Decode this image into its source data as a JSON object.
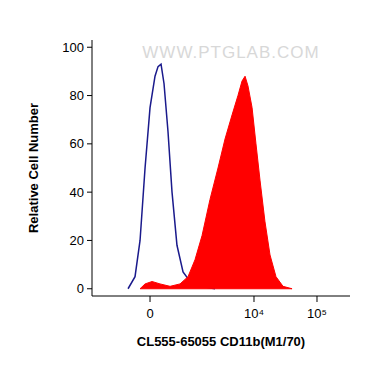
{
  "chart_data": {
    "type": "area",
    "x_label": "CL555-65055 CD11b(M1/70)",
    "y_label": "Relative Cell Number",
    "annotation": "WWW.PTGLAB.COM",
    "log": "x",
    "xlim": [
      -1840,
      334000
    ],
    "xticks": [
      0,
      {
        "value": 10000,
        "label": "10⁴"
      },
      {
        "value": 100000,
        "label": "10⁵"
      }
    ],
    "ylim": [
      -3,
      103
    ],
    "yticks": [
      0,
      20,
      40,
      60,
      80,
      100
    ],
    "grid": false,
    "series": [
      {
        "type": "line",
        "color": "#1a1a8c",
        "x": [
          -400,
          -258,
          -167,
          -82,
          0,
          82,
          133,
          185,
          239,
          316,
          400,
          516,
          681,
          914,
          1353,
          2390
        ],
        "values": [
          0,
          5,
          20,
          50,
          75,
          88,
          92,
          93,
          85,
          65,
          40,
          18,
          7,
          3,
          1,
          0
        ]
      },
      {
        "type": "area",
        "color": "#ff0000",
        "x": [
          -167,
          -82,
          33,
          167,
          358,
          596,
          842,
          1115,
          1465,
          1980,
          2666,
          3455,
          4480,
          5560,
          6450,
          7210,
          8020,
          9320,
          10750,
          12450,
          14900,
          17960,
          22360,
          28900,
          40200
        ],
        "values": [
          0,
          2,
          3,
          2,
          1,
          2,
          5,
          12,
          22,
          37,
          50,
          62,
          72,
          80,
          86,
          88,
          84,
          75,
          60,
          45,
          28,
          14,
          5,
          1,
          0
        ]
      }
    ]
  }
}
